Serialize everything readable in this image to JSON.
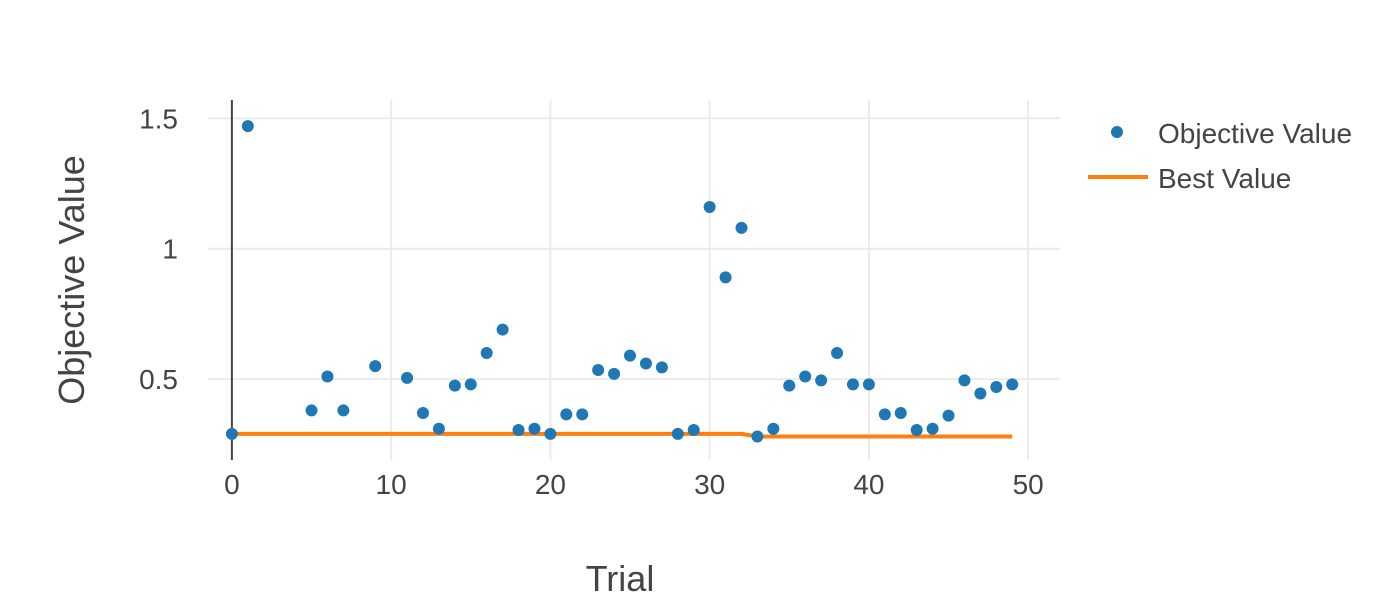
{
  "chart_data": {
    "type": "scatter",
    "title": "",
    "xlabel": "Trial",
    "ylabel": "Objective Value",
    "xlim": [
      -1.5,
      52
    ],
    "ylim": [
      0.19,
      1.57
    ],
    "xticks": [
      0,
      10,
      20,
      30,
      40,
      50
    ],
    "xtick_labels": [
      "0",
      "10",
      "20",
      "30",
      "40",
      "50"
    ],
    "yticks": [
      0.5,
      1.0,
      1.5
    ],
    "ytick_labels": [
      "0.5",
      "1",
      "1.5"
    ],
    "grid": true,
    "legend_position": "top-right",
    "series": [
      {
        "name": "Objective Value",
        "kind": "markers",
        "color": "#1f77b4",
        "x": [
          0,
          1,
          5,
          6,
          7,
          9,
          11,
          12,
          13,
          14,
          15,
          16,
          17,
          18,
          19,
          20,
          21,
          22,
          23,
          24,
          25,
          26,
          27,
          28,
          29,
          30,
          31,
          32,
          33,
          34,
          35,
          36,
          37,
          38,
          39,
          40,
          41,
          42,
          43,
          44,
          45,
          46,
          47,
          48,
          49
        ],
        "y": [
          0.29,
          1.47,
          0.38,
          0.51,
          0.38,
          0.55,
          0.505,
          0.37,
          0.31,
          0.475,
          0.48,
          0.6,
          0.69,
          0.305,
          0.31,
          0.29,
          0.365,
          0.365,
          0.535,
          0.52,
          0.59,
          0.56,
          0.545,
          0.29,
          0.305,
          1.16,
          0.89,
          1.08,
          0.28,
          0.31,
          0.475,
          0.51,
          0.495,
          0.6,
          0.48,
          0.48,
          0.365,
          0.37,
          0.305,
          0.31,
          0.36,
          0.495,
          0.445,
          0.47,
          0.48
        ]
      },
      {
        "name": "Best Value",
        "kind": "line",
        "color": "#ff7f0e",
        "x": [
          0,
          32,
          33,
          49
        ],
        "y": [
          0.29,
          0.29,
          0.28,
          0.28
        ]
      }
    ]
  }
}
